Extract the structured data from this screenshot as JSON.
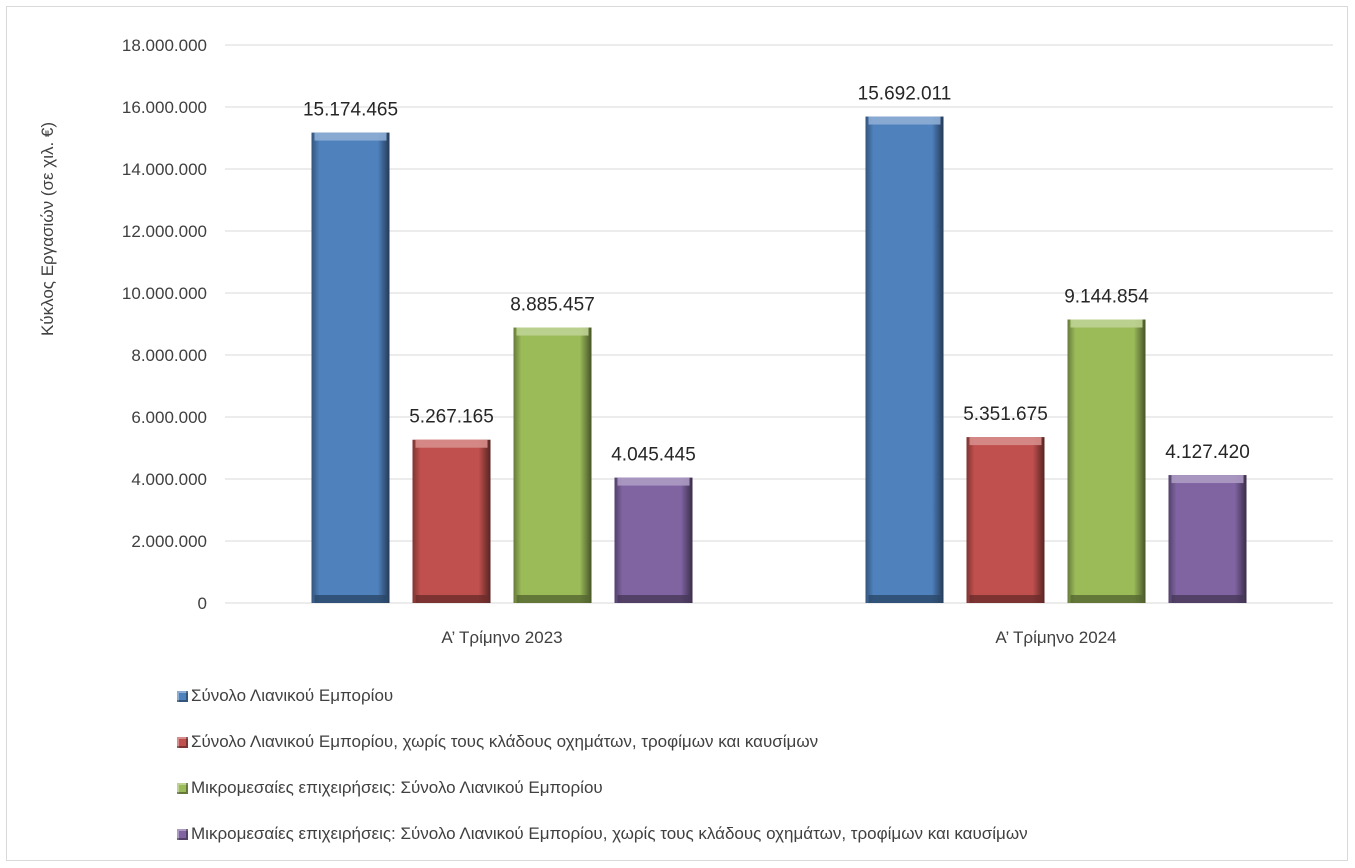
{
  "chart_data": {
    "type": "bar",
    "title": "",
    "xlabel": "",
    "ylabel": "Κύκλος Εργασιών (σε χιλ. €)",
    "ylim": [
      0,
      18000000
    ],
    "yticks": [
      "0",
      "2.000.000",
      "4.000.000",
      "6.000.000",
      "8.000.000",
      "10.000.000",
      "12.000.000",
      "14.000.000",
      "16.000.000",
      "18.000.000"
    ],
    "ytick_values": [
      0,
      2000000,
      4000000,
      6000000,
      8000000,
      10000000,
      12000000,
      14000000,
      16000000,
      18000000
    ],
    "grid": true,
    "legend_position": "bottom",
    "categories": [
      "Α’ Τρίμηνο 2023",
      "Α’ Τρίμηνο 2024"
    ],
    "series": [
      {
        "name": "Σύνολο Λιανικού Εμπορίου",
        "values": [
          15174465,
          15692011
        ],
        "labels": [
          "15.174.465",
          "15.692.011"
        ],
        "color": "#4f81bd"
      },
      {
        "name": "Σύνολο Λιανικού Εμπορίου, χωρίς τους κλάδους οχημάτων, τροφίμων και καυσίμων",
        "values": [
          5267165,
          5351675
        ],
        "labels": [
          "5.267.165",
          "5.351.675"
        ],
        "color": "#c0504d"
      },
      {
        "name": "Μικρομεσαίες επιχειρήσεις: Σύνολο Λιανικού Εμπορίου",
        "values": [
          8885457,
          9144854
        ],
        "labels": [
          "8.885.457",
          "9.144.854"
        ],
        "color": "#9bbb59"
      },
      {
        "name": "Μικρομεσαίες επιχειρήσεις: Σύνολο Λιανικού Εμπορίου, χωρίς τους κλάδους οχημάτων, τροφίμων και καυσίμων",
        "values": [
          4045445,
          4127420
        ],
        "labels": [
          "4.045.445",
          "4.127.420"
        ],
        "color": "#8064a2"
      }
    ]
  }
}
